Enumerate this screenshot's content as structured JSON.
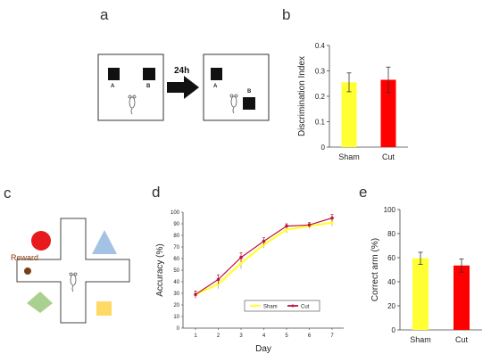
{
  "panels": {
    "a": {
      "letter": "a",
      "arrow_label": "24h",
      "left_box": {
        "object_a": "A",
        "object_b": "B"
      },
      "right_box": {
        "object_a": "A",
        "object_b": "B"
      }
    },
    "c": {
      "letter": "c",
      "reward_label": "Reward",
      "colors": {
        "circle": "#e8191c",
        "triangle": "#a4c2e4",
        "diamond": "#a9d08e",
        "square": "#ffd966",
        "reward": "#7b3f14"
      }
    }
  },
  "chart_data": [
    {
      "id": "b",
      "letter": "b",
      "type": "bar",
      "categories": [
        "Sham",
        "Cut"
      ],
      "values": [
        0.255,
        0.265
      ],
      "errors": [
        0.037,
        0.05
      ],
      "colors": [
        "#ffff33",
        "#ff0000"
      ],
      "ylabel": "Discrimination Index",
      "ylim": [
        0,
        0.4
      ],
      "yticks": [
        "0",
        "0.1",
        "0.2",
        "0.3",
        "0.4"
      ]
    },
    {
      "id": "d",
      "letter": "d",
      "type": "line",
      "x": [
        1,
        2,
        3,
        4,
        5,
        6,
        7
      ],
      "xlabel": "Day",
      "ylabel": "Accuracy (%)",
      "ylim": [
        0,
        100
      ],
      "yticks": [
        "0",
        "10",
        "20",
        "30",
        "40",
        "50",
        "60",
        "70",
        "80",
        "90",
        "100"
      ],
      "series": [
        {
          "name": "Sham",
          "color": "#ffff33",
          "values": [
            29,
            38,
            56,
            72,
            85,
            88,
            91
          ],
          "errors": [
            3,
            4,
            5,
            3,
            3,
            2,
            3
          ]
        },
        {
          "name": "Cut",
          "color": "#c0143c",
          "values": [
            29,
            42,
            61,
            75,
            88,
            89,
            95
          ],
          "errors": [
            3,
            4,
            4,
            3,
            2,
            2,
            3
          ]
        }
      ],
      "legend": "bottom-right"
    },
    {
      "id": "e",
      "letter": "e",
      "type": "bar",
      "categories": [
        "Sham",
        "Cut"
      ],
      "values": [
        59.5,
        53.5
      ],
      "errors": [
        5,
        5.5
      ],
      "colors": [
        "#ffff33",
        "#ff0000"
      ],
      "ylabel": "Correct arm (%)",
      "ylim": [
        0,
        100
      ],
      "yticks": [
        "0",
        "20",
        "40",
        "60",
        "80",
        "100"
      ]
    }
  ]
}
